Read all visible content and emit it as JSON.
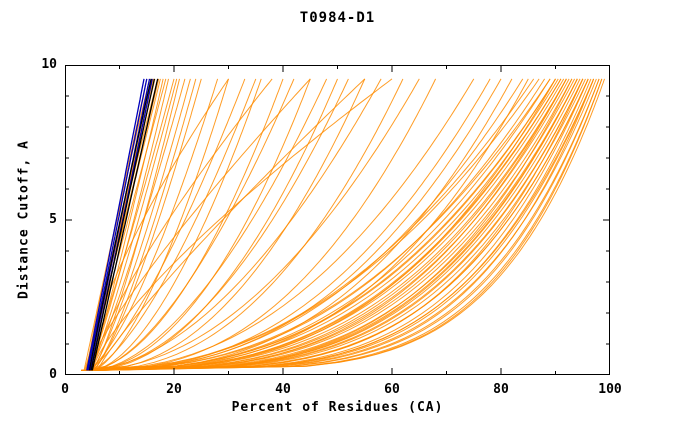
{
  "figure": {
    "title": "T0984-D1",
    "xlabel": "Percent of Residues (CA)",
    "ylabel": "Distance Cutoff, A"
  },
  "colors": {
    "orange_models": "#FF8C00",
    "blue_models": "#0000BB",
    "black_models": "#000000",
    "axis": "#000000",
    "background": "#FFFFFF"
  },
  "chart_data": {
    "type": "line",
    "title": "T0984-D1",
    "xlabel": "Percent of Residues (CA)",
    "ylabel": "Distance Cutoff, A",
    "xlim": [
      0,
      100
    ],
    "ylim": [
      0,
      10
    ],
    "grid": false,
    "legend": "none",
    "axes": {
      "x_major_ticks": [
        0,
        20,
        40,
        60,
        80,
        100
      ],
      "x_minor_ticks": [
        10,
        30,
        50,
        70,
        90
      ],
      "y_major_ticks": [
        0,
        5,
        10
      ],
      "y_minor_ticks": [
        1,
        2,
        3,
        4,
        6,
        7,
        8,
        9
      ]
    },
    "curve_model": "x(t) = x_bottom + (x_top - x_bottom) * t^p ; y(t) = y_bottom + (y_top - y_bottom) * t",
    "y_bottom": 0.15,
    "y_top": 9.55,
    "curve_params_format": [
      "x_at_bottom_percent",
      "x_at_top_percent",
      "shape_exponent_p"
    ],
    "groups": [
      {
        "name": "orange-models",
        "color": "#FF8C00",
        "width": 1,
        "opacity": 0.85,
        "curves": [
          [
            3.5,
            15,
            1.0
          ],
          [
            4,
            16,
            0.95
          ],
          [
            4.1,
            17,
            1.05
          ],
          [
            4.5,
            18,
            0.9
          ],
          [
            3.8,
            16.5,
            1.0
          ],
          [
            4.2,
            19,
            0.85
          ],
          [
            4,
            20,
            0.9
          ],
          [
            5,
            21,
            0.8
          ],
          [
            4.5,
            22,
            0.85
          ],
          [
            4,
            15.5,
            1.1
          ],
          [
            3.6,
            17.5,
            0.95
          ],
          [
            4.8,
            23,
            0.8
          ],
          [
            5,
            25,
            0.75
          ],
          [
            4.2,
            18.5,
            1.0
          ],
          [
            3.9,
            16.2,
            1.02
          ],
          [
            4.6,
            20.5,
            0.88
          ],
          [
            5.2,
            24,
            0.78
          ],
          [
            4.1,
            17.2,
            0.98
          ],
          [
            4,
            28,
            0.7
          ],
          [
            5,
            30,
            0.65
          ],
          [
            4,
            33,
            0.72
          ],
          [
            5,
            36,
            0.6
          ],
          [
            4,
            40,
            0.55
          ],
          [
            5,
            42,
            0.62
          ],
          [
            4,
            45,
            0.5
          ],
          [
            5,
            48,
            0.58
          ],
          [
            4,
            52,
            0.52
          ],
          [
            5,
            55,
            0.48
          ],
          [
            4,
            58,
            0.55
          ],
          [
            5,
            62,
            0.45
          ],
          [
            4,
            65,
            0.5
          ],
          [
            5,
            68,
            0.42
          ],
          [
            4.5,
            35,
            0.68
          ],
          [
            4.5,
            50,
            0.5
          ],
          [
            4,
            30,
            1.4
          ],
          [
            5,
            38,
            1.3
          ],
          [
            4,
            45,
            1.2
          ],
          [
            6,
            55,
            1.15
          ],
          [
            5,
            60,
            1.3
          ],
          [
            4,
            75,
            0.45
          ],
          [
            5,
            78,
            0.42
          ],
          [
            4,
            80,
            0.4
          ],
          [
            5,
            82,
            0.38
          ],
          [
            4,
            84,
            0.42
          ],
          [
            5,
            85,
            0.36
          ],
          [
            3,
            88,
            0.4
          ],
          [
            3,
            90,
            0.38
          ],
          [
            4,
            91,
            0.36
          ],
          [
            3,
            92,
            0.34
          ],
          [
            4,
            93,
            0.32
          ],
          [
            3,
            94,
            0.3
          ],
          [
            4,
            95,
            0.28
          ],
          [
            3,
            96,
            0.26
          ],
          [
            4,
            96.5,
            0.24
          ],
          [
            3,
            97,
            0.22
          ],
          [
            4,
            89,
            0.42
          ],
          [
            3,
            90.5,
            0.37
          ],
          [
            4,
            92.5,
            0.33
          ],
          [
            3,
            93.5,
            0.31
          ],
          [
            4,
            94.5,
            0.29
          ],
          [
            3,
            95.5,
            0.27
          ],
          [
            4,
            97.5,
            0.23
          ],
          [
            3,
            98,
            0.21
          ],
          [
            4,
            98.5,
            0.2
          ],
          [
            3,
            91.5,
            0.35
          ],
          [
            5,
            93,
            0.3
          ],
          [
            5,
            95,
            0.26
          ],
          [
            5,
            96,
            0.25
          ],
          [
            5,
            97,
            0.24
          ],
          [
            6,
            90,
            0.36
          ],
          [
            6,
            94,
            0.3
          ],
          [
            6,
            96,
            0.27
          ],
          [
            4,
            87,
            0.45
          ],
          [
            5,
            89,
            0.4
          ],
          [
            4,
            99,
            0.2
          ],
          [
            5,
            98,
            0.22
          ],
          [
            3,
            86,
            0.44
          ],
          [
            6,
            92,
            0.33
          ],
          [
            5,
            91,
            0.37
          ],
          [
            6,
            97,
            0.25
          ],
          [
            4,
            90,
            0.39
          ],
          [
            5,
            94,
            0.3
          ],
          [
            3,
            95,
            0.28
          ],
          [
            6,
            98.5,
            0.21
          ],
          [
            5,
            92,
            0.34
          ]
        ]
      },
      {
        "name": "blue-models",
        "color": "#0000BB",
        "width": 1.3,
        "opacity": 1,
        "curves": [
          [
            4,
            14.5,
            1.0
          ],
          [
            4.2,
            15,
            1.0
          ],
          [
            4.4,
            15.5,
            0.98
          ],
          [
            4.6,
            16,
            0.97
          ]
        ]
      },
      {
        "name": "black-models",
        "color": "#000000",
        "width": 1.3,
        "opacity": 1,
        "curves": [
          [
            4.5,
            15.8,
            1.05
          ],
          [
            4.8,
            16.4,
            1.02
          ],
          [
            5,
            17,
            1.0
          ]
        ]
      }
    ]
  }
}
